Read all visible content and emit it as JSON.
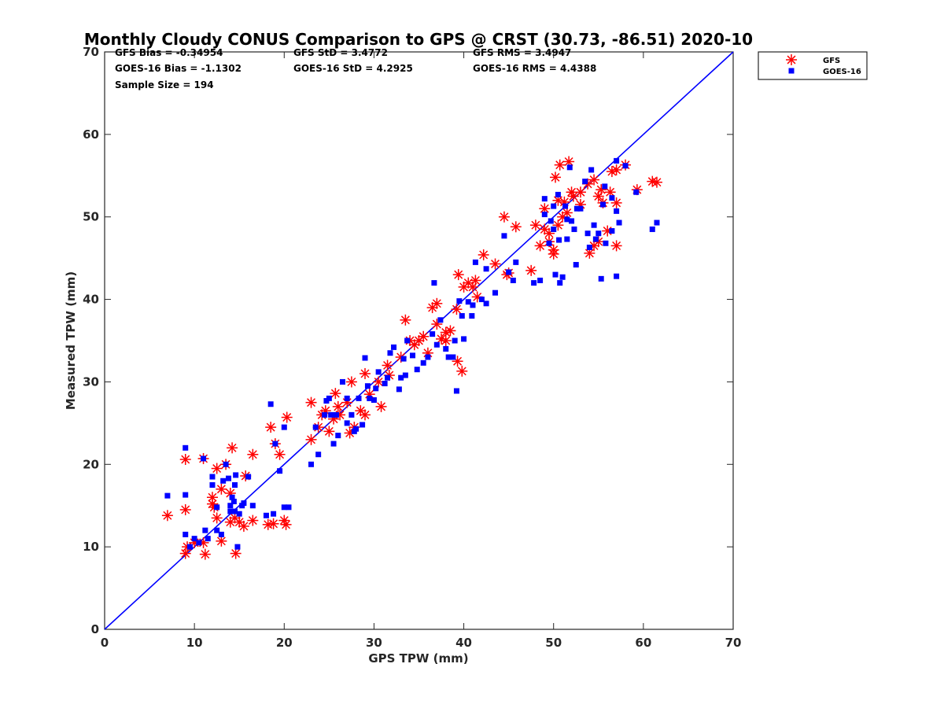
{
  "chart_data": {
    "type": "scatter",
    "title": "Monthly Cloudy CONUS Comparison to GPS @ CRST (30.73, -86.51) 2020-10",
    "xlabel": "GPS TPW (mm)",
    "ylabel": "Measured TPW (mm)",
    "xlim": [
      0,
      70
    ],
    "ylim": [
      0,
      70
    ],
    "xticks": [
      0,
      10,
      20,
      30,
      40,
      50,
      60,
      70
    ],
    "yticks": [
      0,
      10,
      20,
      30,
      40,
      50,
      60,
      70
    ],
    "grid": false,
    "legend_position": "top-right",
    "stats": [
      [
        "GFS Bias = -0.34954",
        "GFS StD = 3.4772",
        "GFS RMS = 3.4947"
      ],
      [
        "GOES-16 Bias = -1.1302",
        "GOES-16 StD = 4.2925",
        "GOES-16 RMS = 4.4388"
      ],
      [
        "Sample Size = 194"
      ]
    ],
    "reference_line": {
      "x": [
        0,
        70
      ],
      "y": [
        0,
        70
      ],
      "color": "#0000ff"
    },
    "series": [
      {
        "name": "GFS",
        "marker": "asterisk",
        "color": "#ff0000",
        "points": [
          [
            7,
            13.8
          ],
          [
            9,
            14.5
          ],
          [
            9,
            20.6
          ],
          [
            9,
            9.2
          ],
          [
            9.2,
            10
          ],
          [
            10,
            10.5
          ],
          [
            11,
            20.7
          ],
          [
            11.2,
            9.1
          ],
          [
            11,
            10.5
          ],
          [
            12,
            16
          ],
          [
            12,
            15.2
          ],
          [
            12.2,
            14.8
          ],
          [
            12.5,
            19.5
          ],
          [
            12.5,
            13.5
          ],
          [
            13,
            10.7
          ],
          [
            13,
            17
          ],
          [
            13.5,
            20
          ],
          [
            14,
            16.5
          ],
          [
            14,
            13
          ],
          [
            14.2,
            22
          ],
          [
            14.5,
            13.5
          ],
          [
            14.6,
            9.2
          ],
          [
            15,
            13
          ],
          [
            15.5,
            12.5
          ],
          [
            15.7,
            18.6
          ],
          [
            16.5,
            21.2
          ],
          [
            16.5,
            13.2
          ],
          [
            18.2,
            12.7
          ],
          [
            18.5,
            24.5
          ],
          [
            18.8,
            12.8
          ],
          [
            19,
            22.5
          ],
          [
            19.5,
            21.2
          ],
          [
            20,
            13.2
          ],
          [
            20.2,
            12.7
          ],
          [
            20.3,
            25.7
          ],
          [
            23,
            27.5
          ],
          [
            23,
            23
          ],
          [
            23.8,
            24.5
          ],
          [
            24.2,
            26
          ],
          [
            24.6,
            26.5
          ],
          [
            25,
            24
          ],
          [
            25.5,
            25.5
          ],
          [
            25.7,
            28.6
          ],
          [
            26,
            27
          ],
          [
            26.2,
            26
          ],
          [
            27,
            27.5
          ],
          [
            27.3,
            23.8
          ],
          [
            27.8,
            24.5
          ],
          [
            27.5,
            30
          ],
          [
            28.5,
            26.5
          ],
          [
            29,
            26
          ],
          [
            29,
            31
          ],
          [
            29.5,
            28.5
          ],
          [
            30.5,
            30
          ],
          [
            30.8,
            27
          ],
          [
            31.5,
            32
          ],
          [
            31.7,
            30.8
          ],
          [
            33,
            33
          ],
          [
            33.5,
            37.5
          ],
          [
            34,
            35
          ],
          [
            34.5,
            34.5
          ],
          [
            35,
            35
          ],
          [
            35.5,
            35.5
          ],
          [
            36,
            33.5
          ],
          [
            36.5,
            39
          ],
          [
            37,
            39.5
          ],
          [
            37,
            37
          ],
          [
            37.5,
            35.2
          ],
          [
            38,
            35
          ],
          [
            38,
            36
          ],
          [
            38.5,
            36.2
          ],
          [
            39.2,
            38.8
          ],
          [
            39.3,
            32.5
          ],
          [
            39.4,
            43
          ],
          [
            39.8,
            31.3
          ],
          [
            40,
            41.5
          ],
          [
            40.5,
            42
          ],
          [
            41,
            41.5
          ],
          [
            41.3,
            42.3
          ],
          [
            41.5,
            40.3
          ],
          [
            42.2,
            45.4
          ],
          [
            43.5,
            44.3
          ],
          [
            44.5,
            50
          ],
          [
            44.8,
            43
          ],
          [
            45,
            43.2
          ],
          [
            45.8,
            48.8
          ],
          [
            47.5,
            43.5
          ],
          [
            48,
            49
          ],
          [
            48.5,
            46.5
          ],
          [
            49,
            48.5
          ],
          [
            49,
            51
          ],
          [
            49.5,
            47
          ],
          [
            49.5,
            48
          ],
          [
            50,
            46
          ],
          [
            50,
            45.5
          ],
          [
            50.2,
            54.8
          ],
          [
            50.5,
            49
          ],
          [
            50.5,
            52
          ],
          [
            50.7,
            56.3
          ],
          [
            51,
            50
          ],
          [
            51.2,
            51.8
          ],
          [
            51.5,
            50.5
          ],
          [
            51.7,
            56.7
          ],
          [
            52,
            53
          ],
          [
            52.2,
            52.5
          ],
          [
            53,
            51.5
          ],
          [
            53,
            53
          ],
          [
            53.8,
            54
          ],
          [
            54,
            45.6
          ],
          [
            54.5,
            54.5
          ],
          [
            54.5,
            46.5
          ],
          [
            55,
            47
          ],
          [
            55,
            52.5
          ],
          [
            55.3,
            53.3
          ],
          [
            55.5,
            51.7
          ],
          [
            56,
            48.3
          ],
          [
            56.3,
            53
          ],
          [
            56.5,
            55.5
          ],
          [
            57,
            46.5
          ],
          [
            57,
            51.7
          ],
          [
            57,
            55.7
          ],
          [
            58,
            56.3
          ],
          [
            59.3,
            53.3
          ],
          [
            61,
            54.3
          ],
          [
            61.5,
            54.2
          ]
        ]
      },
      {
        "name": "GOES-16",
        "marker": "square",
        "color": "#0000ff",
        "points": [
          [
            7,
            16.2
          ],
          [
            9,
            22
          ],
          [
            9,
            16.3
          ],
          [
            9,
            11.5
          ],
          [
            9.5,
            10
          ],
          [
            10,
            11
          ],
          [
            10.5,
            10.5
          ],
          [
            11,
            20.7
          ],
          [
            11.2,
            12
          ],
          [
            11.5,
            11
          ],
          [
            12,
            17.5
          ],
          [
            12,
            18.5
          ],
          [
            12.5,
            14.8
          ],
          [
            12.5,
            12
          ],
          [
            13,
            11.5
          ],
          [
            13.2,
            18
          ],
          [
            13.5,
            20
          ],
          [
            13.8,
            18.3
          ],
          [
            14,
            15
          ],
          [
            14,
            14.3
          ],
          [
            14.2,
            16
          ],
          [
            14.4,
            15.5
          ],
          [
            14.5,
            14.3
          ],
          [
            14.5,
            17.5
          ],
          [
            14.6,
            18.7
          ],
          [
            14.8,
            10
          ],
          [
            15,
            14
          ],
          [
            15.3,
            15
          ],
          [
            15.5,
            15.3
          ],
          [
            16,
            18.5
          ],
          [
            16.5,
            15
          ],
          [
            18,
            13.8
          ],
          [
            18.5,
            27.3
          ],
          [
            18.8,
            14
          ],
          [
            19,
            22.5
          ],
          [
            19.5,
            19.2
          ],
          [
            20,
            24.5
          ],
          [
            20,
            14.8
          ],
          [
            20.5,
            14.8
          ],
          [
            23,
            20
          ],
          [
            23.5,
            24.5
          ],
          [
            23.8,
            21.2
          ],
          [
            24.5,
            26
          ],
          [
            24.7,
            27.7
          ],
          [
            25,
            28
          ],
          [
            25.2,
            26
          ],
          [
            25.5,
            22.5
          ],
          [
            25.8,
            26
          ],
          [
            26,
            23.5
          ],
          [
            26.5,
            30
          ],
          [
            27,
            25
          ],
          [
            27,
            28
          ],
          [
            27.5,
            26
          ],
          [
            27.8,
            24
          ],
          [
            28,
            24.3
          ],
          [
            28.3,
            28
          ],
          [
            28.7,
            24.8
          ],
          [
            29,
            32.9
          ],
          [
            29.3,
            29.5
          ],
          [
            29.5,
            28
          ],
          [
            30,
            27.8
          ],
          [
            30.2,
            29.2
          ],
          [
            30.5,
            31.2
          ],
          [
            31.2,
            29.8
          ],
          [
            31.5,
            30.5
          ],
          [
            31.8,
            33.5
          ],
          [
            32.2,
            34.2
          ],
          [
            32.8,
            29.1
          ],
          [
            33,
            30.5
          ],
          [
            33.3,
            32.8
          ],
          [
            33.5,
            30.8
          ],
          [
            33.7,
            35
          ],
          [
            34.3,
            33.2
          ],
          [
            34.8,
            31.5
          ],
          [
            35.5,
            32.3
          ],
          [
            36,
            33
          ],
          [
            36.5,
            35.8
          ],
          [
            36.7,
            42
          ],
          [
            37,
            34.5
          ],
          [
            37.4,
            37.5
          ],
          [
            38,
            34
          ],
          [
            38.3,
            33
          ],
          [
            38.8,
            33
          ],
          [
            39,
            35
          ],
          [
            39.2,
            28.9
          ],
          [
            39.5,
            39.8
          ],
          [
            39.8,
            38
          ],
          [
            40,
            35.2
          ],
          [
            40.5,
            39.7
          ],
          [
            40.9,
            38
          ],
          [
            41,
            39.3
          ],
          [
            41.3,
            44.5
          ],
          [
            42,
            40
          ],
          [
            42.5,
            39.5
          ],
          [
            42.5,
            43.7
          ],
          [
            43.5,
            40.8
          ],
          [
            44.5,
            47.7
          ],
          [
            45,
            43.3
          ],
          [
            45.5,
            42.3
          ],
          [
            45.8,
            44.5
          ],
          [
            47.8,
            42
          ],
          [
            48.5,
            42.3
          ],
          [
            49,
            50.3
          ],
          [
            49,
            52.2
          ],
          [
            49.5,
            46.8
          ],
          [
            49.7,
            49.5
          ],
          [
            50,
            48.5
          ],
          [
            50,
            51.3
          ],
          [
            50.2,
            43
          ],
          [
            50.5,
            52.7
          ],
          [
            50.6,
            47.2
          ],
          [
            50.7,
            42
          ],
          [
            51,
            42.7
          ],
          [
            51.3,
            51.3
          ],
          [
            51.5,
            49.7
          ],
          [
            51.5,
            47.3
          ],
          [
            51.8,
            56
          ],
          [
            52,
            49.5
          ],
          [
            52.3,
            48.5
          ],
          [
            52.5,
            44.2
          ],
          [
            52.6,
            51
          ],
          [
            53,
            51
          ],
          [
            53.5,
            54.3
          ],
          [
            53.8,
            48
          ],
          [
            54,
            46.3
          ],
          [
            54.2,
            55.7
          ],
          [
            54.5,
            49
          ],
          [
            54.7,
            47.3
          ],
          [
            55,
            48
          ],
          [
            55.3,
            42.5
          ],
          [
            55.5,
            51.5
          ],
          [
            55.7,
            53.7
          ],
          [
            55.8,
            46.8
          ],
          [
            56.5,
            48.3
          ],
          [
            56.5,
            52.3
          ],
          [
            57,
            50.7
          ],
          [
            57,
            56.8
          ],
          [
            57,
            42.8
          ],
          [
            57.3,
            49.3
          ],
          [
            58,
            56.2
          ],
          [
            59.2,
            53
          ],
          [
            61,
            48.5
          ],
          [
            61.5,
            49.3
          ]
        ]
      }
    ]
  }
}
